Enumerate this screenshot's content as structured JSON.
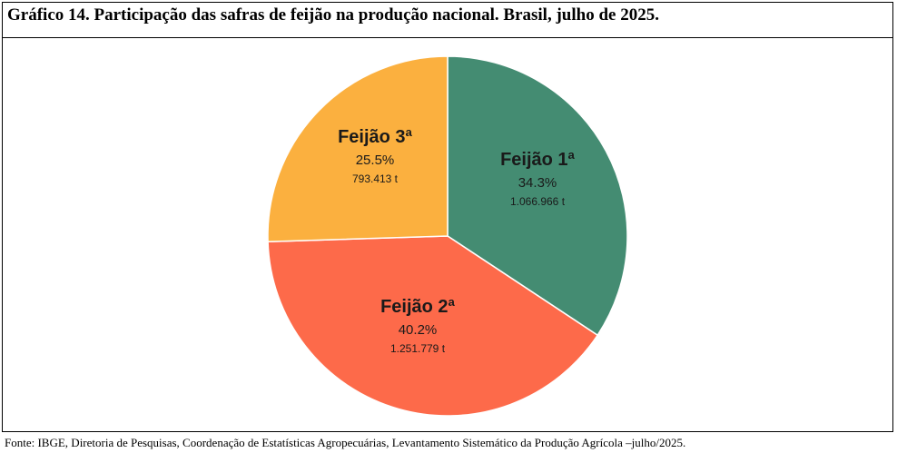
{
  "title": "Gráfico 14. Participação das safras de feijão na produção nacional. Brasil, julho de 2025.",
  "source": "Fonte: IBGE, Diretoria de Pesquisas, Coordenação de Estatísticas Agropecuárias, Levantamento Sistemático da Produção Agrícola –julho/2025.",
  "chart_data": {
    "type": "pie",
    "categories": [
      "Feijão 1ª",
      "Feijão 2ª",
      "Feijão 3ª"
    ],
    "values": [
      34.3,
      40.2,
      25.5
    ],
    "value_labels": [
      "34.3%",
      "40.2%",
      "25.5%"
    ],
    "quantity_labels": [
      "1.066.966 t",
      "1.251.779 t",
      "793.413 t"
    ],
    "colors": [
      "#448c72",
      "#fd6a4a",
      "#fbb03f"
    ],
    "start": "top, clockwise"
  }
}
